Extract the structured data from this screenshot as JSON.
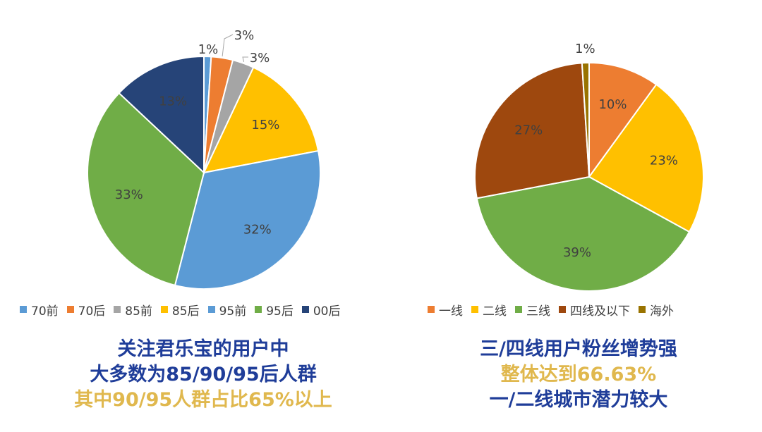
{
  "chart_data": [
    {
      "type": "pie",
      "categories": [
        "70前",
        "70后",
        "85前",
        "85后",
        "95前",
        "95后",
        "00后"
      ],
      "values": [
        1,
        3,
        3,
        15,
        32,
        33,
        13
      ],
      "labels": [
        "1%",
        "3%",
        "3%",
        "15%",
        "32%",
        "33%",
        "13%"
      ],
      "colors": [
        "#5b9bd5",
        "#ed7d31",
        "#a5a5a5",
        "#ffc000",
        "#5b9bd5",
        "#70ad47",
        "#264478"
      ],
      "legend": "bottom",
      "caption": [
        "关注君乐宝的用户中",
        "大多数为85/90/95后人群",
        "其中90/95人群占比65%以上"
      ]
    },
    {
      "type": "pie",
      "categories": [
        "一线",
        "二线",
        "三线",
        "四线及以下",
        "海外"
      ],
      "values": [
        10,
        23,
        39,
        27,
        1
      ],
      "labels": [
        "10%",
        "23%",
        "39%",
        "27%",
        "1%"
      ],
      "colors": [
        "#ed7d31",
        "#ffc000",
        "#70ad47",
        "#9e480e",
        "#997300"
      ],
      "legend": "bottom",
      "caption": [
        "三/四线用户粉丝增势强",
        "整体达到66.63%",
        "一/二线城市潜力较大"
      ]
    }
  ],
  "caption_colors": {
    "blue": "#1f3d99",
    "gold": "#e0b84e"
  }
}
